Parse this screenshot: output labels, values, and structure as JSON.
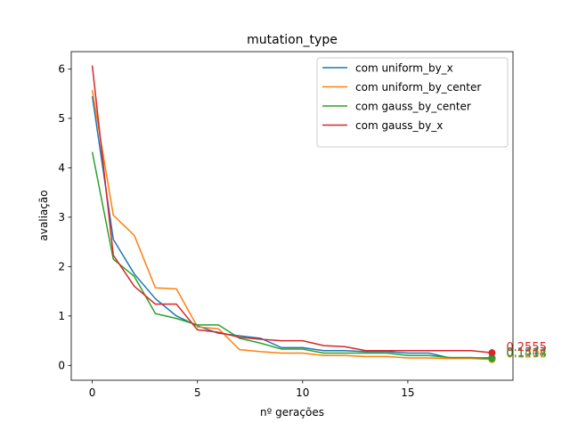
{
  "chart_data": {
    "type": "line",
    "title": "mutation_type",
    "xlabel": "nº gerações",
    "ylabel": "avaliação",
    "xlim": [
      -1,
      20
    ],
    "ylim": [
      -0.3,
      6.35
    ],
    "x_ticks": [
      0,
      5,
      10,
      15
    ],
    "y_ticks": [
      0,
      1,
      2,
      3,
      4,
      5,
      6
    ],
    "grid": false,
    "legend_position": "top-right",
    "x": [
      0,
      1,
      2,
      3,
      4,
      5,
      6,
      7,
      8,
      9,
      10,
      11,
      12,
      13,
      14,
      15,
      16,
      17,
      18,
      19
    ],
    "series": [
      {
        "name": "com uniform_by_x",
        "color": "#1f77b4",
        "values": [
          5.45,
          2.55,
          1.85,
          1.35,
          1.0,
          0.8,
          0.65,
          0.6,
          0.55,
          0.36,
          0.36,
          0.3,
          0.3,
          0.28,
          0.28,
          0.25,
          0.25,
          0.15,
          0.15,
          0.1547
        ],
        "end_label": "0.1547"
      },
      {
        "name": "com uniform_by_center",
        "color": "#ff7f0e",
        "values": [
          5.57,
          3.04,
          2.63,
          1.57,
          1.55,
          0.78,
          0.74,
          0.32,
          0.28,
          0.25,
          0.25,
          0.2,
          0.2,
          0.18,
          0.18,
          0.15,
          0.15,
          0.14,
          0.14,
          0.1208
        ],
        "end_label": "0.1208"
      },
      {
        "name": "com gauss_by_center",
        "color": "#2ca02c",
        "values": [
          4.32,
          2.15,
          1.8,
          1.05,
          0.95,
          0.82,
          0.82,
          0.55,
          0.45,
          0.33,
          0.33,
          0.25,
          0.25,
          0.25,
          0.25,
          0.2,
          0.2,
          0.16,
          0.16,
          0.1414
        ],
        "end_label": "0.1414"
      },
      {
        "name": "com gauss_by_x",
        "color": "#d62728",
        "values": [
          6.07,
          2.23,
          1.6,
          1.24,
          1.24,
          0.72,
          0.67,
          0.57,
          0.53,
          0.5,
          0.5,
          0.4,
          0.38,
          0.3,
          0.3,
          0.3,
          0.3,
          0.3,
          0.3,
          0.2555
        ],
        "end_label": "0.2555"
      }
    ]
  }
}
